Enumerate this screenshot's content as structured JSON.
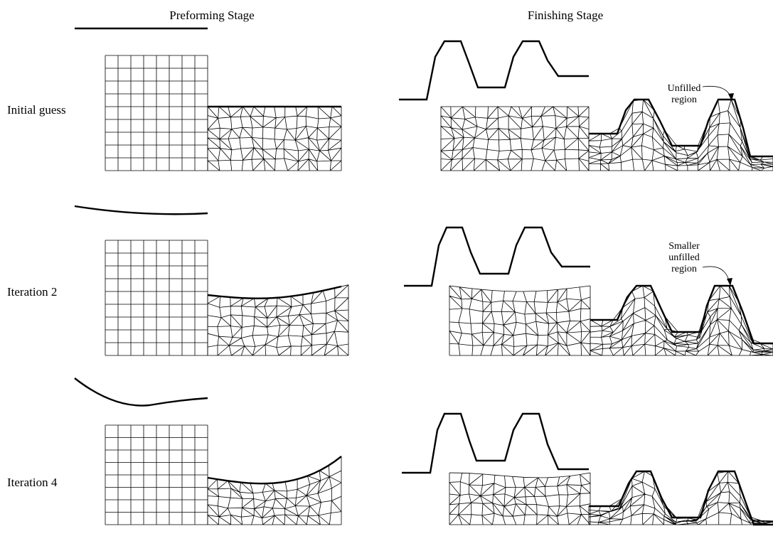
{
  "headers": {
    "preforming": "Preforming Stage",
    "finishing": "Finishing Stage"
  },
  "rows": [
    {
      "label": "Initial guess"
    },
    {
      "label": "Iteration 2"
    },
    {
      "label": "Iteration 4"
    }
  ],
  "annotations": [
    {
      "lines": [
        "Unfilled",
        "region"
      ]
    },
    {
      "lines": [
        "Smaller",
        "unfilled",
        "region"
      ]
    }
  ]
}
